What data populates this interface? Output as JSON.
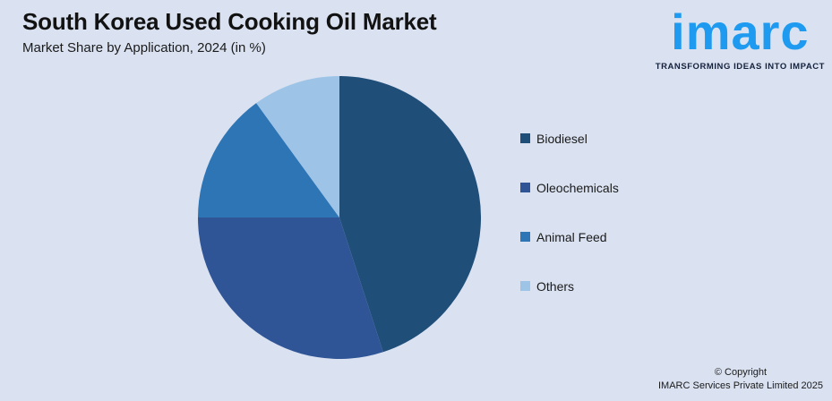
{
  "background_color": "#DAE2F1",
  "header": {
    "title": "South Korea Used Cooking Oil Market",
    "subtitle": "Market Share by Application, 2024 (in %)"
  },
  "logo": {
    "brand": "imarc",
    "tagline": "TRANSFORMING IDEAS INTO IMPACT",
    "brand_color": "#1E9BF0",
    "tagline_color": "#14213D"
  },
  "chart_data": {
    "type": "pie",
    "title": "South Korea Used Cooking Oil Market",
    "subtitle": "Market Share by Application, 2024 (in %)",
    "unit": "%",
    "categories": [
      "Biodiesel",
      "Oleochemicals",
      "Animal Feed",
      "Others"
    ],
    "values": [
      45,
      30,
      15,
      10
    ],
    "colors": [
      "#1F4E79",
      "#2F5597",
      "#2E75B6",
      "#9DC3E6"
    ],
    "start_angle_deg": -90,
    "direction": "clockwise",
    "legend_position": "right",
    "data_labels": false
  },
  "footer": {
    "line1": "© Copyright",
    "line2": "IMARC Services Private Limited 2025"
  }
}
